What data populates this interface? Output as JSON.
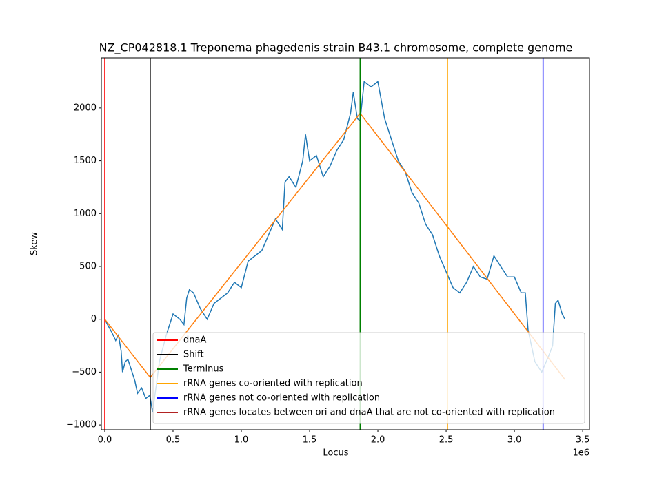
{
  "chart_data": {
    "type": "line",
    "title": "NZ_CP042818.1 Treponema phagedenis strain B43.1 chromosome, complete genome",
    "xlabel": "Locus",
    "ylabel": "Skew",
    "x_offset_label": "1e6",
    "xlim": [
      -25000,
      3550000
    ],
    "ylim": [
      -1045,
      2475
    ],
    "xticks": [
      {
        "value": 0,
        "label": "0.0"
      },
      {
        "value": 500000,
        "label": "0.5"
      },
      {
        "value": 1000000,
        "label": "1.0"
      },
      {
        "value": 1500000,
        "label": "1.5"
      },
      {
        "value": 2000000,
        "label": "2.0"
      },
      {
        "value": 2500000,
        "label": "2.5"
      },
      {
        "value": 3000000,
        "label": "3.0"
      },
      {
        "value": 3500000,
        "label": "3.5"
      }
    ],
    "yticks": [
      {
        "value": -1000,
        "label": "−1000"
      },
      {
        "value": -500,
        "label": "−500"
      },
      0,
      500,
      1000,
      1500,
      2000
    ],
    "skew": {
      "color": "#1f77b4",
      "x": [
        0,
        20000,
        50000,
        80000,
        100000,
        120000,
        130000,
        150000,
        170000,
        200000,
        220000,
        240000,
        270000,
        300000,
        330000,
        350000,
        380000,
        400000,
        420000,
        450000,
        500000,
        550000,
        580000,
        600000,
        620000,
        650000,
        700000,
        750000,
        800000,
        850000,
        900000,
        950000,
        1000000,
        1050000,
        1100000,
        1150000,
        1200000,
        1250000,
        1300000,
        1320000,
        1350000,
        1400000,
        1450000,
        1470000,
        1500000,
        1550000,
        1600000,
        1650000,
        1700000,
        1750000,
        1800000,
        1820000,
        1850000,
        1870000,
        1900000,
        1950000,
        2000000,
        2050000,
        2100000,
        2150000,
        2200000,
        2250000,
        2300000,
        2350000,
        2400000,
        2450000,
        2500000,
        2550000,
        2600000,
        2650000,
        2700000,
        2750000,
        2800000,
        2850000,
        2900000,
        2950000,
        3000000,
        3050000,
        3080000,
        3100000,
        3150000,
        3200000,
        3250000,
        3280000,
        3300000,
        3320000,
        3350000,
        3370000
      ],
      "values": [
        0,
        -50,
        -120,
        -200,
        -150,
        -300,
        -500,
        -400,
        -380,
        -500,
        -580,
        -700,
        -650,
        -750,
        -720,
        -880,
        -600,
        -400,
        -300,
        -150,
        50,
        0,
        -50,
        200,
        280,
        250,
        100,
        0,
        150,
        200,
        250,
        350,
        300,
        550,
        600,
        650,
        800,
        950,
        850,
        1300,
        1350,
        1250,
        1500,
        1750,
        1500,
        1550,
        1350,
        1450,
        1600,
        1700,
        1950,
        2150,
        1900,
        1880,
        2250,
        2200,
        2250,
        1900,
        1700,
        1500,
        1400,
        1200,
        1100,
        900,
        800,
        600,
        450,
        300,
        250,
        350,
        500,
        400,
        380,
        600,
        500,
        400,
        400,
        250,
        250,
        -100,
        -400,
        -500,
        -350,
        -250,
        150,
        180,
        50,
        0
      ]
    },
    "fit": {
      "color": "#ff7f0e",
      "x": [
        0,
        333000,
        1870000,
        3370000
      ],
      "values": [
        0,
        -550,
        1950,
        -570
      ]
    },
    "vlines": [
      {
        "name": "dnaA",
        "color": "#ff0000",
        "x": 0
      },
      {
        "name": "Shift",
        "color": "#000000",
        "x": 333000
      },
      {
        "name": "Terminus",
        "color": "#008000",
        "x": 1870000
      },
      {
        "name": "rRNA genes co-oriented with replication",
        "color": "#ffa500",
        "x": 2510000
      },
      {
        "name": "rRNA genes not co-oriented with replication",
        "color": "#0000ff",
        "x": 3210000
      }
    ],
    "legend_only": [
      {
        "name": "rRNA genes locates between ori and dnaA that are not co-oriented with replication",
        "color": "#b22222"
      }
    ],
    "legend": "lower right"
  }
}
